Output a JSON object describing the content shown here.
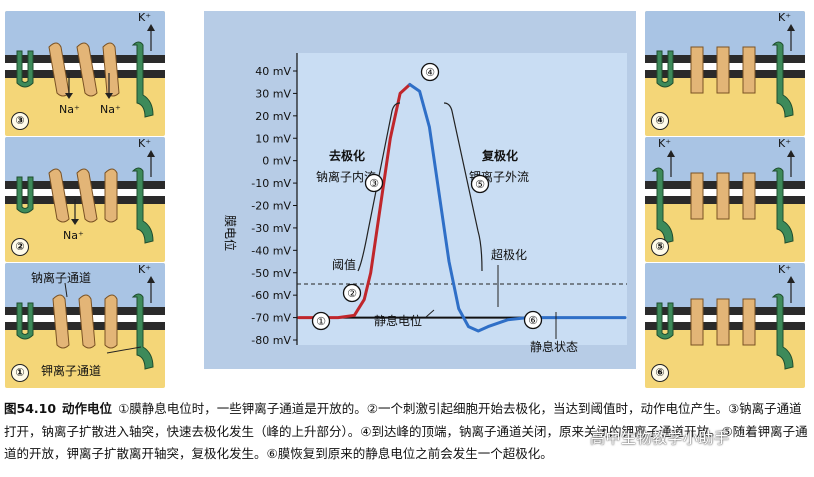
{
  "figure": {
    "y_axis_label": "膜电位",
    "y_ticks": [
      "40 mV",
      "30 mV",
      "20 mV",
      "10 mV",
      "0 mV",
      "-10 mV",
      "-20 mV",
      "-30 mV",
      "-40 mV",
      "-50 mV",
      "-60 mV",
      "-70 mV",
      "-80 mV"
    ],
    "annotations": {
      "depolarization": "去极化",
      "na_influx": "钠离子内流",
      "repolarization": "复极化",
      "k_efflux": "钾离子外流",
      "threshold": "阈值",
      "hyperpolarization": "超极化",
      "resting_potential": "静息电位",
      "resting_state": "静息状态"
    },
    "markers": [
      "①",
      "②",
      "③",
      "④",
      "⑤",
      "⑥"
    ]
  },
  "panels": {
    "left": [
      {
        "num": "③",
        "labels": [
          "Na⁺",
          "Na⁺"
        ],
        "k_label": "K⁺"
      },
      {
        "num": "②",
        "labels": [
          "Na⁺"
        ],
        "k_label": "K⁺"
      },
      {
        "num": "①",
        "na_channel_label": "钠离子通道",
        "k_channel_label": "钾离子通道",
        "k_label": "K⁺"
      }
    ],
    "right": [
      {
        "num": "④",
        "k_label": "K⁺"
      },
      {
        "num": "⑤",
        "k_label_1": "K⁺",
        "k_label_2": "K⁺"
      },
      {
        "num": "⑥",
        "k_label": "K⁺"
      }
    ]
  },
  "caption": {
    "fig_no": "图54.10",
    "fig_title": "动作电位",
    "text": "①膜静息电位时，一些钾离子通道是开放的。②一个刺激引起细胞开始去极化，当达到阈值时，动作电位产生。③钠离子通道打开，钠离子扩散进入轴突，快速去极化发生（峰的上升部分）。④到达峰的顶端，钠离子通道关闭，原来关闭的钾离子通道开放。⑤随着钾离子通道的开放，钾离子扩散离开轴突，复极化发生。⑥膜恢复到原来的静息电位之前会发生一个超极化。"
  },
  "watermark": "高中生物教学小助手",
  "chart_data": {
    "type": "line",
    "ylabel": "膜电位",
    "ylim": [
      -85,
      42
    ],
    "yticks": [
      40,
      30,
      20,
      10,
      0,
      -10,
      -20,
      -30,
      -40,
      -50,
      -60,
      -70,
      -80
    ],
    "threshold": -55,
    "resting": -70,
    "series": [
      {
        "name": "去极化",
        "color": "#c0262b",
        "points": [
          [
            0,
            -70
          ],
          [
            0.12,
            -70
          ],
          [
            0.17,
            -69
          ],
          [
            0.2,
            -62
          ],
          [
            0.22,
            -50
          ],
          [
            0.25,
            -20
          ],
          [
            0.28,
            10
          ],
          [
            0.31,
            30
          ],
          [
            0.34,
            34
          ]
        ]
      },
      {
        "name": "复极化",
        "color": "#2f6fc7",
        "points": [
          [
            0.34,
            34
          ],
          [
            0.37,
            31
          ],
          [
            0.4,
            15
          ],
          [
            0.43,
            -15
          ],
          [
            0.46,
            -45
          ],
          [
            0.49,
            -66
          ],
          [
            0.52,
            -74
          ],
          [
            0.55,
            -76
          ],
          [
            0.58,
            -74
          ],
          [
            0.64,
            -71
          ],
          [
            0.7,
            -70
          ],
          [
            1,
            -70
          ]
        ]
      }
    ]
  }
}
